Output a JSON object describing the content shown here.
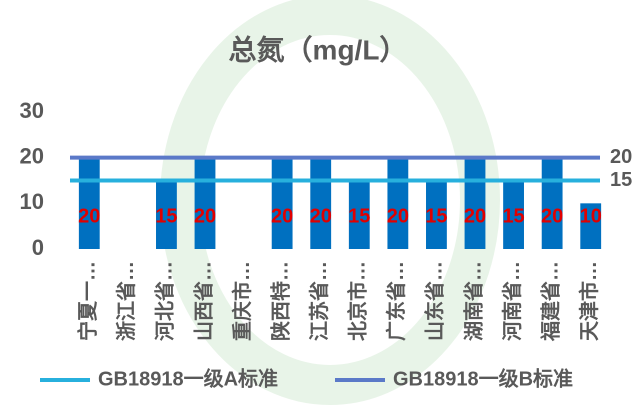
{
  "chart_data": {
    "type": "bar",
    "title": "总氮（mg/L）",
    "categories": [
      "宁夏一…",
      "浙江省…",
      "河北省…",
      "山西省…",
      "重庆市…",
      "陕西特…",
      "江苏省…",
      "北京市…",
      "广东省…",
      "山东省…",
      "湖南省…",
      "河南省…",
      "福建省…",
      "天津市…"
    ],
    "values": [
      20,
      null,
      15,
      20,
      null,
      20,
      20,
      15,
      20,
      15,
      20,
      15,
      20,
      10
    ],
    "color": "#0070c0",
    "label_color": "#e00000",
    "ylim": [
      0,
      30
    ],
    "yticks": [
      0,
      10,
      20,
      30
    ],
    "grid": false,
    "reference_lines": [
      {
        "name": "GB18918一级A标准",
        "color": "#27b0dd",
        "value": 15
      },
      {
        "name": "GB18918一级B标准",
        "color": "#5b79c8",
        "value": 20
      }
    ],
    "legend": "bottom"
  }
}
